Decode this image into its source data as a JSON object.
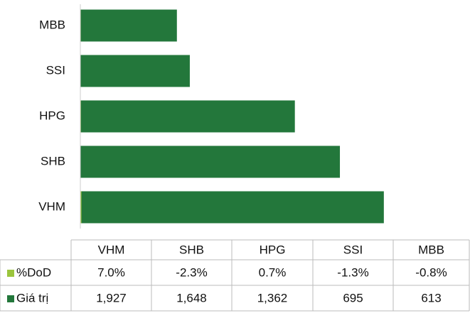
{
  "chart_data": {
    "type": "bar",
    "orientation": "horizontal",
    "categories": [
      "VHM",
      "SHB",
      "HPG",
      "SSI",
      "MBB"
    ],
    "series": [
      {
        "name": "%DoD",
        "color": "#9bc53d",
        "values": [
          7.0,
          -2.3,
          0.7,
          -1.3,
          -0.8
        ],
        "value_labels": [
          "7.0%",
          "-2.3%",
          "0.7%",
          "-1.3%",
          "-0.8%"
        ]
      },
      {
        "name": "Giá trị",
        "color": "#23773b",
        "values": [
          1927,
          1648,
          1362,
          695,
          613
        ],
        "value_labels": [
          "1,927",
          "1,648",
          "1,362",
          "695",
          "613"
        ]
      }
    ],
    "xlim": [
      0,
      2000
    ]
  }
}
